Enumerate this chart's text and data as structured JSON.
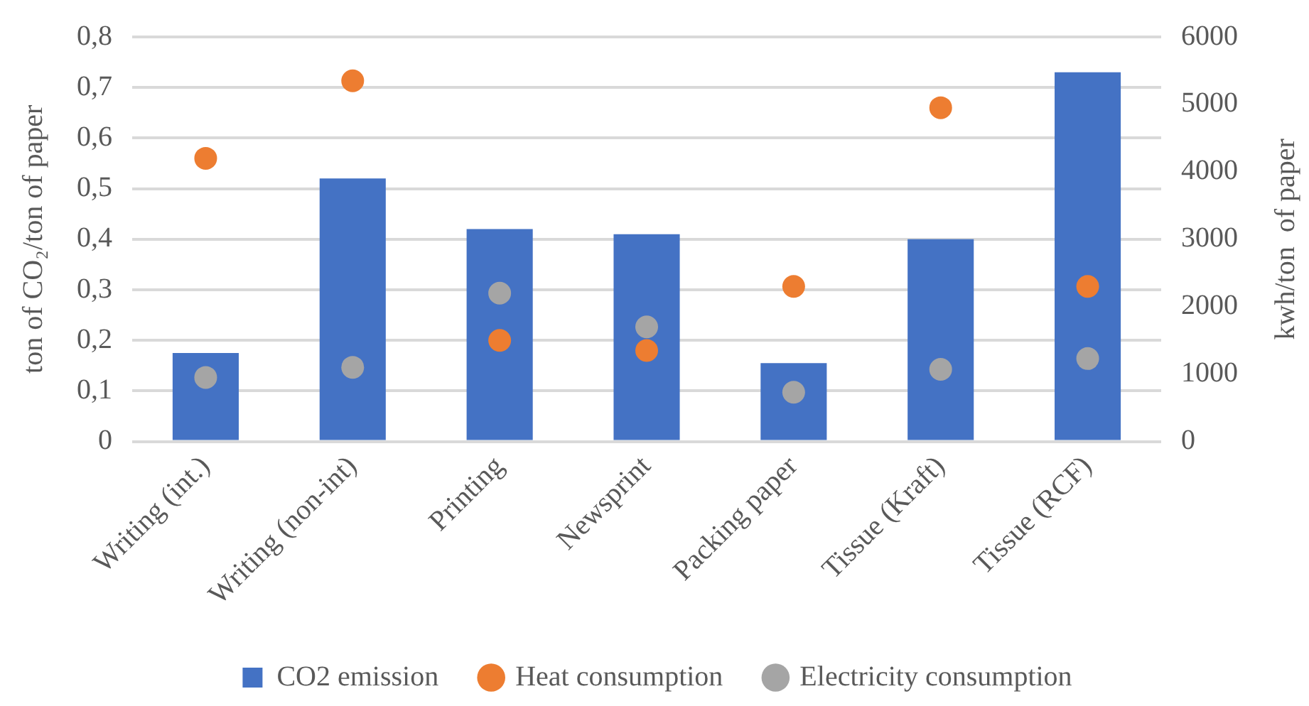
{
  "chart_data": {
    "type": "bar",
    "ylabel": "ton of CO₂/ton of paper",
    "y2label": "kwh/ton  of paper",
    "categories": [
      "Writing (int.)",
      "Writing (non-int)",
      "Printing",
      "Newsprint",
      "Packing paper",
      "Tissue (Kraft)",
      "Tissue (RCF)"
    ],
    "series": [
      {
        "name": "CO2 emission",
        "color": "#4472c4",
        "values": [
          0.175,
          0.52,
          0.42,
          0.41,
          0.155,
          0.4,
          0.73
        ]
      },
      {
        "name": "Heat consumption",
        "type": "scatter",
        "axis": "y2",
        "color": "#ed7d31",
        "values": [
          4200,
          5350,
          1500,
          1350,
          2300,
          4950,
          2300
        ]
      },
      {
        "name": "Electricity consumption",
        "type": "scatter",
        "axis": "y2",
        "color": "#a5a5a5",
        "values": [
          950,
          1100,
          2200,
          1700,
          730,
          1070,
          1230
        ]
      }
    ],
    "ylim": [
      0,
      0.8
    ],
    "yticks": [
      0,
      {
        "value": 0.1,
        "label": "0,1"
      },
      {
        "value": 0.2,
        "label": "0,2"
      },
      {
        "value": 0.3,
        "label": "0,3"
      },
      {
        "value": 0.4,
        "label": "0,4"
      },
      {
        "value": 0.5,
        "label": "0,5"
      },
      {
        "value": 0.6,
        "label": "0,6"
      },
      {
        "value": 0.7,
        "label": "0,7"
      },
      {
        "value": 0.8,
        "label": "0,8"
      }
    ],
    "y2lim": [
      0,
      6000
    ],
    "y2ticks": [
      0,
      1000,
      2000,
      3000,
      4000,
      5000,
      6000
    ],
    "grid": "y",
    "legend": "bottom",
    "marker": "circle"
  }
}
